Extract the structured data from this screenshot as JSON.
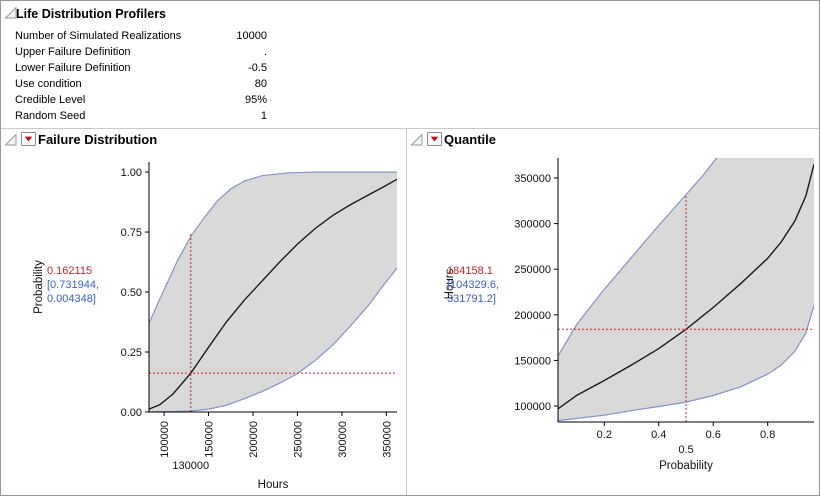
{
  "header": {
    "title": "Life Distribution Profilers",
    "settings": [
      {
        "label": "Number of Simulated Realizations",
        "value": "10000"
      },
      {
        "label": "Upper Failure Definition",
        "value": "."
      },
      {
        "label": "Lower Failure Definition",
        "value": "-0.5"
      },
      {
        "label": "Use condition",
        "value": "80"
      },
      {
        "label": "Credible Level",
        "value": "95%"
      },
      {
        "label": "Random Seed",
        "value": "1"
      }
    ]
  },
  "panels": {
    "failure": {
      "title": "Failure Distribution",
      "ylabel": "Probability",
      "xlabel": "Hours",
      "annotation": {
        "estimate": "0.162115",
        "ci_line1": "[0.731944,",
        "ci_line2": "0.004348]"
      }
    },
    "quantile": {
      "title": "Quantile",
      "ylabel": "Hours",
      "xlabel": "Probability",
      "annotation": {
        "estimate": "184158.1",
        "ci_line1": "[104329.6,",
        "ci_line2": "331791.2]"
      }
    }
  },
  "colors": {
    "crosshair": "#c42525",
    "estimate_text": "#c42525",
    "ci_text": "#3a5fcd",
    "band": "#d9d9d9",
    "band_edge": "#8494c8",
    "curve": "#1a1a1a",
    "menu_button": "#cf0a18",
    "axis": "#000000"
  },
  "chart_data": [
    {
      "id": "failure",
      "type": "area",
      "title": "Failure Distribution",
      "xlabel": "Hours",
      "ylabel": "Probability",
      "xlim": [
        83000,
        362000
      ],
      "ylim": [
        0,
        1.042
      ],
      "xticks": [
        100000,
        150000,
        200000,
        250000,
        300000,
        350000
      ],
      "xtick_labels": [
        "100000",
        "150000",
        "200000",
        "250000",
        "300000",
        "350000"
      ],
      "x_tick_rotated": true,
      "yticks": [
        0,
        0.25,
        0.5,
        0.75,
        1.0
      ],
      "ytick_labels": [
        "0.00",
        "0.25",
        "0.50",
        "0.75",
        "1.00"
      ],
      "crosshair": {
        "x": 130000,
        "y": 0.162115,
        "vline_top": 0.745,
        "x_label": "130000"
      },
      "series": [
        {
          "name": "upper",
          "x": [
            83000,
            95000,
            105000,
            115000,
            130000,
            145000,
            160000,
            175000,
            190000,
            210000,
            240000,
            270000,
            362000
          ],
          "y": [
            0.37,
            0.47,
            0.55,
            0.63,
            0.732,
            0.81,
            0.88,
            0.93,
            0.962,
            0.985,
            0.997,
            1.0,
            1.0
          ]
        },
        {
          "name": "estimate",
          "x": [
            83000,
            95000,
            110000,
            130000,
            150000,
            170000,
            190000,
            210000,
            230000,
            250000,
            270000,
            290000,
            310000,
            330000,
            345000,
            362000
          ],
          "y": [
            0.012,
            0.03,
            0.075,
            0.162115,
            0.27,
            0.375,
            0.465,
            0.545,
            0.625,
            0.7,
            0.765,
            0.82,
            0.865,
            0.905,
            0.935,
            0.97
          ]
        },
        {
          "name": "lower",
          "x": [
            83000,
            110000,
            130000,
            150000,
            170000,
            190000,
            210000,
            230000,
            250000,
            270000,
            290000,
            310000,
            330000,
            345000,
            362000
          ],
          "y": [
            0.0,
            0.002,
            0.004348,
            0.012,
            0.028,
            0.055,
            0.085,
            0.12,
            0.16,
            0.215,
            0.28,
            0.36,
            0.445,
            0.52,
            0.6
          ]
        }
      ]
    },
    {
      "id": "quantile",
      "type": "area",
      "title": "Quantile",
      "xlabel": "Probability",
      "ylabel": "Hours",
      "xlim": [
        0.03,
        0.97
      ],
      "ylim": [
        82500,
        371900
      ],
      "xticks": [
        0.2,
        0.4,
        0.6,
        0.8
      ],
      "xtick_labels": [
        "0.2",
        "0.4",
        "0.6",
        "0.8"
      ],
      "x_tick_rotated": false,
      "yticks": [
        100000,
        150000,
        200000,
        250000,
        300000,
        350000
      ],
      "ytick_labels": [
        "100000",
        "150000",
        "200000",
        "250000",
        "300000",
        "350000"
      ],
      "crosshair": {
        "x": 0.5,
        "y": 184158.1,
        "vline_top": 331791.2,
        "x_label": "0.5"
      },
      "series": [
        {
          "name": "upper",
          "x": [
            0.03,
            0.1,
            0.2,
            0.3,
            0.4,
            0.5,
            0.56,
            0.62,
            0.8,
            0.97
          ],
          "y": [
            155000,
            190000,
            228000,
            263000,
            298000,
            331791.2,
            352000,
            375000,
            430000,
            480000
          ]
        },
        {
          "name": "estimate",
          "x": [
            0.03,
            0.1,
            0.2,
            0.3,
            0.4,
            0.5,
            0.6,
            0.7,
            0.8,
            0.85,
            0.9,
            0.94,
            0.97
          ],
          "y": [
            97000,
            112000,
            128000,
            145000,
            163000,
            184158.1,
            208000,
            234000,
            262000,
            280000,
            303000,
            330000,
            365000
          ]
        },
        {
          "name": "lower",
          "x": [
            0.03,
            0.1,
            0.2,
            0.3,
            0.4,
            0.5,
            0.6,
            0.7,
            0.8,
            0.85,
            0.9,
            0.94,
            0.97
          ],
          "y": [
            84000,
            86500,
            90000,
            95000,
            99500,
            104329.6,
            111500,
            121000,
            135000,
            145000,
            160000,
            180000,
            210000
          ]
        }
      ]
    }
  ]
}
